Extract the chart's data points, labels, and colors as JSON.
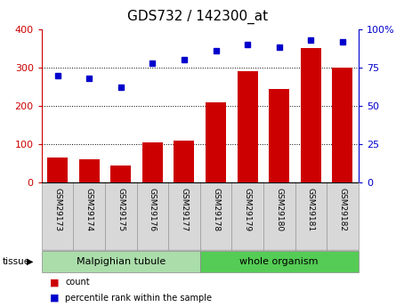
{
  "title": "GDS732 / 142300_at",
  "samples": [
    "GSM29173",
    "GSM29174",
    "GSM29175",
    "GSM29176",
    "GSM29177",
    "GSM29178",
    "GSM29179",
    "GSM29180",
    "GSM29181",
    "GSM29182"
  ],
  "count": [
    65,
    60,
    45,
    105,
    110,
    210,
    290,
    245,
    350,
    300
  ],
  "percentile": [
    70,
    68,
    62,
    78,
    80,
    86,
    90,
    88,
    93,
    92
  ],
  "bar_color": "#cc0000",
  "dot_color": "#0000cc",
  "left_ylim": [
    0,
    400
  ],
  "right_ylim": [
    0,
    100
  ],
  "left_yticks": [
    0,
    100,
    200,
    300,
    400
  ],
  "right_yticks": [
    0,
    25,
    50,
    75,
    100
  ],
  "right_yticklabels": [
    "0",
    "25",
    "50",
    "75",
    "100%"
  ],
  "tissue_groups": [
    {
      "label": "Malpighian tubule",
      "indices": [
        0,
        1,
        2,
        3,
        4
      ],
      "color": "#aaddaa"
    },
    {
      "label": "whole organism",
      "indices": [
        5,
        6,
        7,
        8,
        9
      ],
      "color": "#55cc55"
    }
  ],
  "tissue_label": "tissue",
  "legend_items": [
    {
      "label": "count",
      "color": "#cc0000"
    },
    {
      "label": "percentile rank within the sample",
      "color": "#0000cc"
    }
  ],
  "bg_color": "#ffffff",
  "tick_label_color_left": "#cc0000",
  "tick_label_color_right": "#0000cc",
  "title_fontsize": 11,
  "tick_fontsize": 8,
  "bar_width": 0.65,
  "grid_color": "#000000",
  "grid_lines": [
    100,
    200,
    300
  ]
}
